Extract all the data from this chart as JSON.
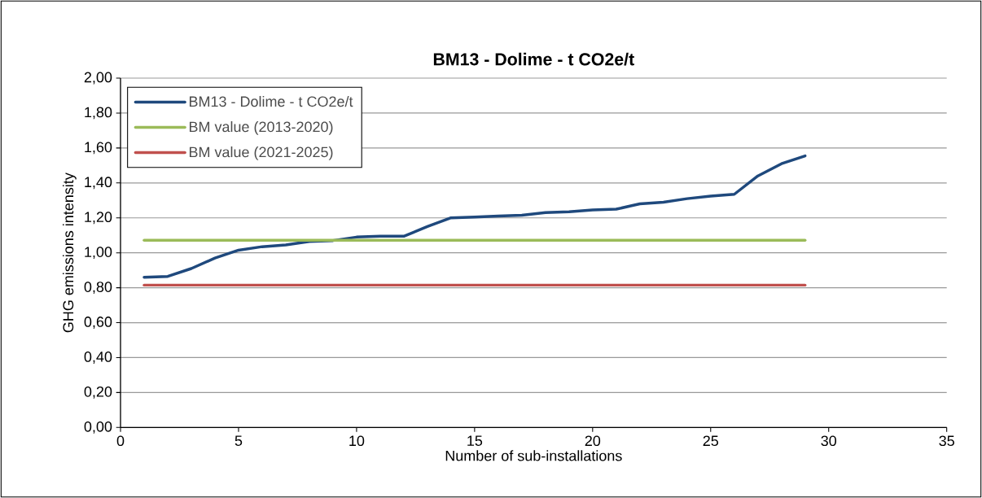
{
  "chart_data": {
    "type": "line",
    "title": "BM13 - Dolime - t CO2e/t",
    "xlabel": "Number of sub-installations",
    "ylabel": "GHG emissions intensity",
    "xlim": [
      0,
      35
    ],
    "xticks": [
      0,
      5,
      10,
      15,
      20,
      25,
      30,
      35
    ],
    "ylim": [
      0,
      2
    ],
    "yticks": [
      {
        "value": 0,
        "label": "0,00"
      },
      {
        "value": 0.2,
        "label": "0,20"
      },
      {
        "value": 0.4,
        "label": "0,40"
      },
      {
        "value": 0.6,
        "label": "0,60"
      },
      {
        "value": 0.8,
        "label": "0,80"
      },
      {
        "value": 1.0,
        "label": "1,00"
      },
      {
        "value": 1.2,
        "label": "1,20"
      },
      {
        "value": 1.4,
        "label": "1,40"
      },
      {
        "value": 1.6,
        "label": "1,60"
      },
      {
        "value": 1.8,
        "label": "1,80"
      },
      {
        "value": 2.0,
        "label": "2,00"
      }
    ],
    "grid": "y",
    "legend": "top left",
    "marker": "none",
    "line_style": "solid",
    "series": [
      {
        "name": "BM13 - Dolime - t CO2e/t",
        "color": "#1f497d",
        "x": [
          1,
          2,
          3,
          4,
          5,
          6,
          7,
          8,
          9,
          10,
          11,
          12,
          13,
          14,
          15,
          16,
          17,
          18,
          19,
          20,
          21,
          22,
          23,
          24,
          25,
          26,
          27,
          28,
          29
        ],
        "values": [
          0.86,
          0.865,
          0.91,
          0.97,
          1.015,
          1.035,
          1.045,
          1.065,
          1.07,
          1.09,
          1.095,
          1.095,
          1.15,
          1.2,
          1.205,
          1.21,
          1.215,
          1.23,
          1.235,
          1.245,
          1.25,
          1.28,
          1.29,
          1.31,
          1.325,
          1.335,
          1.44,
          1.51,
          1.555
        ]
      },
      {
        "name": "BM value (2013-2020)",
        "color": "#9bbb59",
        "x": [
          1,
          29
        ],
        "values": [
          1.072,
          1.072
        ]
      },
      {
        "name": "BM value (2021-2025)",
        "color": "#c0504d",
        "x": [
          1,
          29
        ],
        "values": [
          0.815,
          0.815
        ]
      }
    ]
  }
}
